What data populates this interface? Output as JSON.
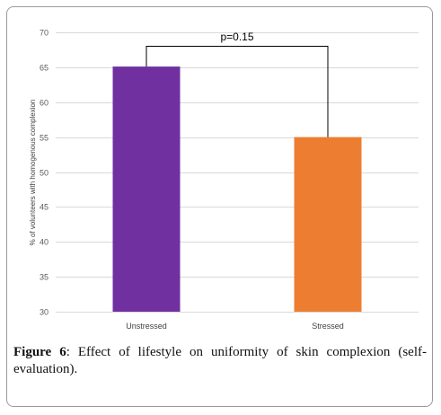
{
  "chart_data": {
    "type": "bar",
    "categories": [
      "Unstressed",
      "Stressed"
    ],
    "values": [
      65.1,
      55.0
    ],
    "colors": [
      "#7030a0",
      "#ed7d31"
    ],
    "ylabel": "% of volunteers with homogenous complexion",
    "xlabel": "",
    "ylim": [
      30,
      70
    ],
    "yticks": [
      30,
      35,
      40,
      45,
      50,
      55,
      60,
      65,
      70
    ],
    "grid": true,
    "grid_color": "#d9d9d9",
    "annotation": {
      "text": "p=0.15"
    }
  },
  "caption": {
    "label": "Figure 6",
    "text": ": Effect of lifestyle on uniformity of skin complexion (self-evaluation)."
  }
}
